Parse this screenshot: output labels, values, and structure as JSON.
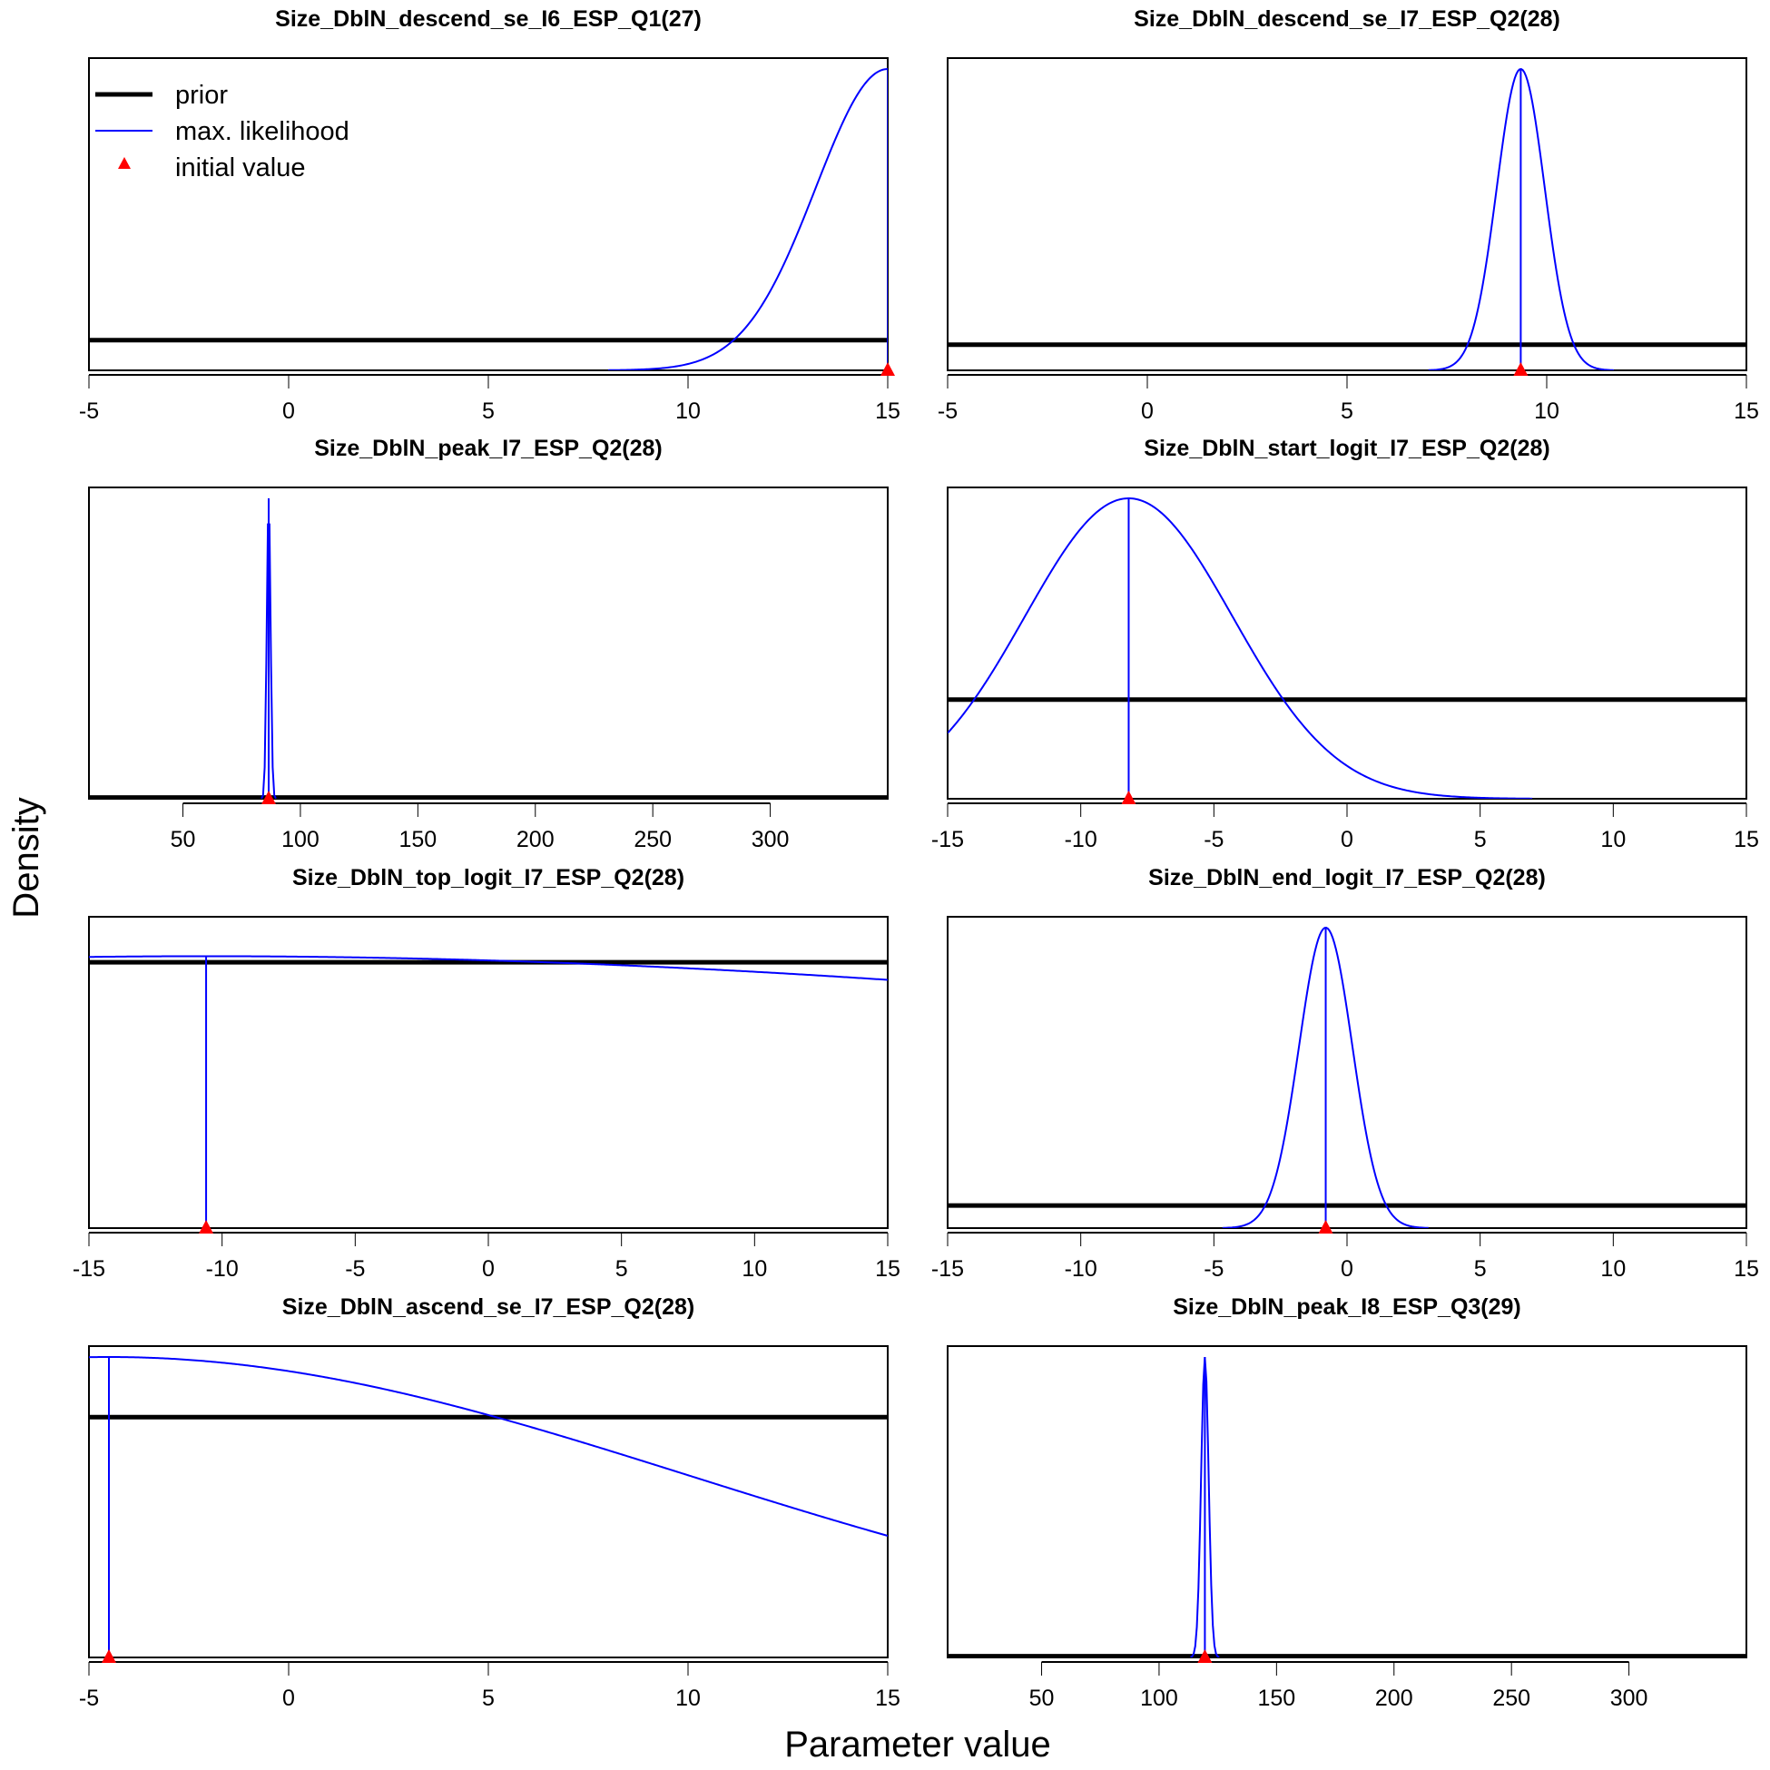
{
  "figure": {
    "ylabel": "Density",
    "xlabel": "Parameter value",
    "legend": {
      "placement": "top-left of first panel",
      "items": [
        {
          "label": "prior",
          "style": "thick-black-line"
        },
        {
          "label": "max. likelihood",
          "style": "blue-line"
        },
        {
          "label": "initial value",
          "style": "red-triangle"
        }
      ]
    },
    "colors": {
      "prior": "#000000",
      "likelihood": "#0000ff",
      "initial": "#ff0000"
    }
  },
  "chart_data": [
    {
      "type": "line",
      "title": "Size_DblN_descend_se_I6_ESP_Q1(27)",
      "xlim": [
        -5,
        15
      ],
      "ticks": [
        -5,
        0,
        5,
        10,
        15
      ],
      "tick_labels": [
        "-5",
        "0",
        "5",
        "10",
        "15"
      ],
      "prior_level": 0.1,
      "mle": 15,
      "sd": 1.8,
      "init": 15,
      "support": [
        -5,
        15
      ],
      "mle_line": true,
      "ymax": 1.0
    },
    {
      "type": "line",
      "title": "Size_DblN_descend_se_I7_ESP_Q2(28)",
      "xlim": [
        -5,
        15
      ],
      "ticks": [
        -5,
        0,
        5,
        10,
        15
      ],
      "tick_labels": [
        "-5",
        "0",
        "5",
        "10",
        "15"
      ],
      "prior_level": 0.085,
      "mle": 9.35,
      "sd": 0.6,
      "init": 9.35,
      "support": [
        -5,
        15
      ],
      "mle_line": true,
      "ymax": 1.0
    },
    {
      "type": "line",
      "title": "Size_DblN_peak_I7_ESP_Q2(28)",
      "xlim": [
        10,
        350
      ],
      "ticks": [
        50,
        100,
        150,
        200,
        250,
        300
      ],
      "tick_labels": [
        "50",
        "100",
        "150",
        "200",
        "250",
        "300"
      ],
      "prior_level": 0.004,
      "mle": 86.5,
      "sd": 0.8,
      "init": 86.5,
      "support": [
        10,
        350
      ],
      "mle_line": true,
      "ymax": 1.0
    },
    {
      "type": "line",
      "title": "Size_DblN_start_logit_I7_ESP_Q2(28)",
      "xlim": [
        -15,
        15
      ],
      "ticks": [
        -15,
        -10,
        -5,
        0,
        5,
        10,
        15
      ],
      "tick_labels": [
        "-15",
        "-10",
        "-5",
        "0",
        "5",
        "10",
        "15"
      ],
      "prior_level": 0.33,
      "mle": -8.2,
      "sd": 3.9,
      "init": -8.2,
      "support": [
        -15,
        15
      ],
      "mle_line": true,
      "ymax": 1.0
    },
    {
      "type": "line",
      "title": "Size_DblN_top_logit_I7_ESP_Q2(28)",
      "xlim": [
        -15,
        15
      ],
      "ticks": [
        -15,
        -10,
        -5,
        0,
        5,
        10,
        15
      ],
      "tick_labels": [
        "-15",
        "-10",
        "-5",
        "0",
        "5",
        "10",
        "15"
      ],
      "prior_level": 0.885,
      "mle": -10.6,
      "sd": 60,
      "init": -10.6,
      "support": [
        -15,
        15
      ],
      "mle_line": true,
      "ymax": 0.905
    },
    {
      "type": "line",
      "title": "Size_DblN_end_logit_I7_ESP_Q2(28)",
      "xlim": [
        -15,
        15
      ],
      "ticks": [
        -15,
        -10,
        -5,
        0,
        5,
        10,
        15
      ],
      "tick_labels": [
        "-15",
        "-10",
        "-5",
        "0",
        "5",
        "10",
        "15"
      ],
      "prior_level": 0.075,
      "mle": -0.8,
      "sd": 1.0,
      "init": -0.8,
      "support": [
        -15,
        15
      ],
      "mle_line": true,
      "ymax": 1.0
    },
    {
      "type": "line",
      "title": "Size_DblN_ascend_se_I7_ESP_Q2(28)",
      "xlim": [
        -5,
        15
      ],
      "ticks": [
        -5,
        0,
        5,
        10,
        15
      ],
      "tick_labels": [
        "-5",
        "0",
        "5",
        "10",
        "15"
      ],
      "prior_level": 0.8,
      "mle": -4.5,
      "sd": 14.5,
      "init": -4.5,
      "support": [
        -5,
        15
      ],
      "mle_line": true,
      "ymax": 1.0
    },
    {
      "type": "line",
      "title": "Size_DblN_peak_I8_ESP_Q3(29)",
      "xlim": [
        10,
        350
      ],
      "ticks": [
        50,
        100,
        150,
        200,
        250,
        300
      ],
      "tick_labels": [
        "50",
        "100",
        "150",
        "200",
        "250",
        "300"
      ],
      "prior_level": 0.004,
      "mle": 119.5,
      "sd": 1.6,
      "init": 119.5,
      "support": [
        10,
        350
      ],
      "mle_line": true,
      "ymax": 1.0
    }
  ]
}
